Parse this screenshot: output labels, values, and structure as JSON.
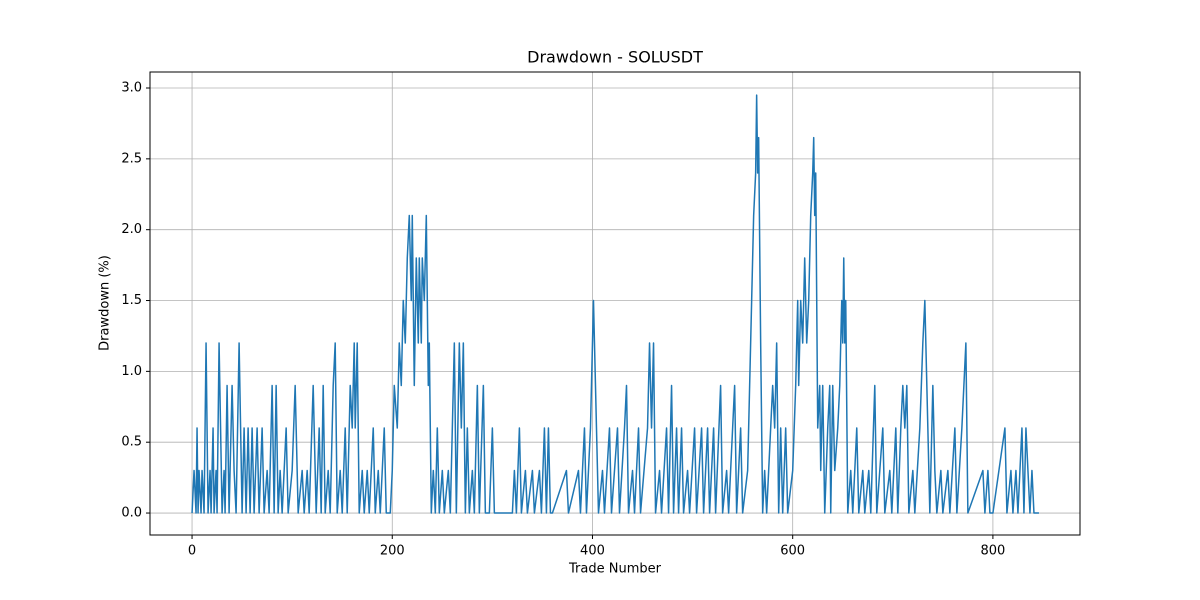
{
  "chart_data": {
    "type": "line",
    "title": "Drawdown - SOLUSDT",
    "x_label": "Trade Number",
    "y_label": "Drawdown (%)",
    "xlim": [
      -42,
      887
    ],
    "ylim": [
      -0.155,
      3.113
    ],
    "xticks": [
      0,
      200,
      400,
      600,
      800
    ],
    "yticks": [
      {
        "value": 0,
        "label": "0.0"
      },
      0.5,
      {
        "value": 1,
        "label": "1.0"
      },
      1.5,
      {
        "value": 2,
        "label": "2.0"
      },
      2.5,
      {
        "value": 3,
        "label": "3.0"
      }
    ],
    "grid": true,
    "x": [
      0,
      2,
      4,
      5,
      6,
      7,
      9,
      10,
      12,
      14,
      16,
      18,
      19,
      21,
      22,
      24,
      25,
      27,
      30,
      32,
      33,
      35,
      37,
      40,
      42,
      44,
      47,
      50,
      52,
      54,
      56,
      58,
      60,
      62,
      65,
      67,
      70,
      72,
      75,
      77,
      80,
      82,
      84,
      86,
      88,
      90,
      94,
      96,
      100,
      103,
      106,
      110,
      112,
      115,
      117,
      121,
      124,
      127,
      129,
      131,
      133,
      136,
      138,
      141,
      143,
      145,
      148,
      150,
      153,
      155,
      158,
      160,
      162,
      163,
      165,
      167,
      170,
      172,
      175,
      177,
      181,
      183,
      186,
      188,
      192,
      194,
      198,
      200,
      202,
      205,
      207,
      209,
      211,
      213,
      215,
      217,
      219,
      220,
      222,
      224,
      226,
      227,
      229,
      230,
      232,
      234,
      236,
      237,
      239,
      241,
      243,
      245,
      247,
      250,
      252,
      256,
      258,
      262,
      264,
      267,
      269,
      271,
      273,
      275,
      277,
      280,
      282,
      285,
      287,
      291,
      293,
      297,
      300,
      302,
      320,
      322,
      324,
      327,
      329,
      333,
      335,
      340,
      342,
      347,
      349,
      352,
      354,
      356,
      358,
      360,
      374,
      376,
      386,
      388,
      392,
      394,
      398,
      401,
      404,
      406,
      410,
      412,
      417,
      419,
      425,
      427,
      432,
      434,
      436,
      440,
      442,
      446,
      448,
      455,
      457,
      459,
      461,
      463,
      467,
      469,
      474,
      476,
      479,
      481,
      484,
      486,
      489,
      491,
      495,
      497,
      502,
      504,
      509,
      511,
      515,
      517,
      521,
      523,
      528,
      530,
      534,
      536,
      542,
      544,
      548,
      550,
      555,
      557,
      559,
      561,
      563,
      564,
      565,
      566,
      568,
      570,
      572,
      574,
      580,
      582,
      584,
      586,
      588,
      590,
      593,
      595,
      600,
      603,
      605,
      606,
      608,
      610,
      612,
      614,
      616,
      618,
      620,
      621,
      622,
      623,
      625,
      627,
      628,
      630,
      632,
      635,
      637,
      638,
      640,
      642,
      645,
      647,
      649,
      650,
      651,
      652,
      653,
      655,
      658,
      660,
      664,
      666,
      670,
      672,
      676,
      678,
      682,
      684,
      690,
      692,
      697,
      699,
      703,
      705,
      708,
      710,
      712,
      714,
      716,
      720,
      722,
      727,
      730,
      732,
      735,
      737,
      740,
      742,
      744,
      748,
      750,
      755,
      757,
      762,
      764,
      769,
      771,
      773,
      775,
      790,
      792,
      795,
      797,
      800,
      812,
      814,
      818,
      820,
      823,
      825,
      829,
      831,
      833,
      835,
      837,
      839,
      841,
      846
    ],
    "series": [
      {
        "name": "Drawdown",
        "color": "#1f77b4",
        "values": [
          0,
          0.3,
          0,
          0.6,
          0,
          0.3,
          0,
          0.3,
          0,
          1.2,
          0,
          0.3,
          0,
          0.6,
          0,
          0.3,
          0,
          1.2,
          0,
          0.3,
          0,
          0.9,
          0,
          0.9,
          0.3,
          0,
          1.2,
          0,
          0.6,
          0,
          0.6,
          0,
          0.6,
          0,
          0.6,
          0,
          0.6,
          0,
          0.3,
          0,
          0.9,
          0,
          0.9,
          0,
          0.3,
          0,
          0.6,
          0,
          0.3,
          0.9,
          0,
          0.3,
          0,
          0.3,
          0,
          0.9,
          0,
          0.6,
          0,
          0.9,
          0,
          0.3,
          0,
          0.9,
          1.2,
          0,
          0.3,
          0,
          0.6,
          0,
          0.9,
          0.6,
          1.2,
          0.6,
          1.2,
          0,
          0.3,
          0,
          0.3,
          0,
          0.6,
          0,
          0.3,
          0,
          0.6,
          0,
          0,
          0.3,
          0.9,
          0.6,
          1.2,
          0.9,
          1.5,
          1.2,
          1.8,
          2.1,
          1.5,
          2.1,
          0.9,
          1.8,
          1.2,
          1.8,
          1.2,
          1.8,
          1.5,
          2.1,
          0.9,
          1.2,
          0,
          0.3,
          0,
          0.6,
          0,
          0.3,
          0,
          0.3,
          0,
          1.2,
          0,
          1.2,
          0.6,
          1.2,
          0,
          0.6,
          0,
          0.3,
          0,
          0.9,
          0,
          0.9,
          0,
          0,
          0.6,
          0,
          0,
          0.3,
          0,
          0.6,
          0,
          0.3,
          0,
          0.3,
          0,
          0.3,
          0,
          0.6,
          0,
          0.6,
          0,
          0,
          0.3,
          0,
          0.3,
          0,
          0.6,
          0,
          0.6,
          1.5,
          0.6,
          0,
          0.3,
          0,
          0.6,
          0,
          0.6,
          0,
          0.6,
          0.9,
          0,
          0.3,
          0,
          0.6,
          0,
          0.6,
          1.2,
          0.6,
          1.2,
          0,
          0.3,
          0,
          0.6,
          0,
          0.9,
          0,
          0.6,
          0,
          0.6,
          0,
          0.3,
          0,
          0.6,
          0,
          0.6,
          0,
          0.6,
          0,
          0.6,
          0,
          0.9,
          0,
          0.3,
          0,
          0.9,
          0,
          0.6,
          0,
          0.3,
          0.9,
          1.5,
          2.1,
          2.4,
          2.95,
          2.4,
          2.65,
          1.2,
          0,
          0.3,
          0,
          0.9,
          0.6,
          1.2,
          0,
          0.6,
          0,
          0.6,
          0,
          0.3,
          0.9,
          1.5,
          0.9,
          1.5,
          1.2,
          1.8,
          1.2,
          1.5,
          2.1,
          2.4,
          2.65,
          2.1,
          2.4,
          0.6,
          0.9,
          0.3,
          0.9,
          0,
          0.6,
          0.9,
          0,
          0.9,
          0.3,
          0.6,
          0.9,
          1.5,
          1.2,
          1.8,
          1.2,
          1.5,
          0,
          0.3,
          0,
          0.6,
          0,
          0.3,
          0,
          0.3,
          0,
          0.9,
          0,
          0.6,
          0,
          0.3,
          0,
          0.6,
          0,
          0.6,
          0.9,
          0.6,
          0.9,
          0,
          0.3,
          0,
          0.6,
          1.2,
          1.5,
          0.6,
          0,
          0.9,
          0.3,
          0,
          0.3,
          0,
          0.3,
          0,
          0.6,
          0,
          0.6,
          0.9,
          1.2,
          0,
          0.3,
          0,
          0.3,
          0,
          0,
          0.6,
          0,
          0.3,
          0,
          0.3,
          0,
          0.6,
          0,
          0.6,
          0.3,
          0,
          0.3,
          0,
          0
        ]
      }
    ]
  }
}
